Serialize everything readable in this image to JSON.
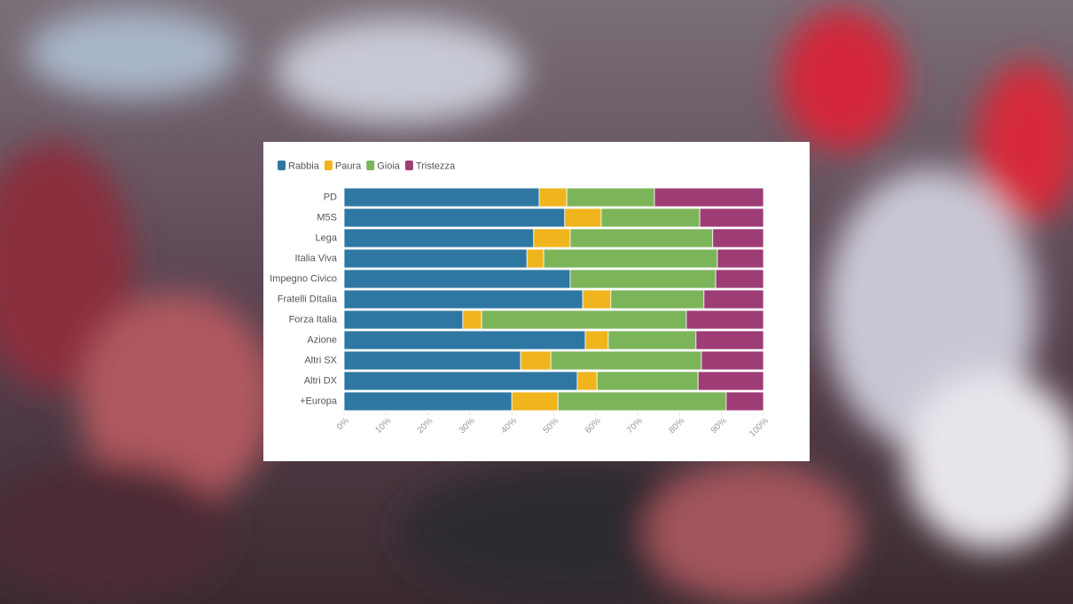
{
  "chart_data": {
    "type": "stacked-bar-horizontal",
    "categories": [
      "PD",
      "M5S",
      "Lega",
      "Italia Viva",
      "Impegno Civico",
      "Fratelli DItalia",
      "Forza Italia",
      "Azione",
      "Altri SX",
      "Altri DX",
      "+Europa"
    ],
    "series": [
      {
        "name": "Rabbia",
        "color": "#2e77a3",
        "values": [
          46.5,
          52.6,
          45.2,
          43.6,
          53.9,
          56.9,
          28.3,
          57.5,
          42.1,
          55.6,
          40.0
        ]
      },
      {
        "name": "Paura",
        "color": "#f0b41d",
        "values": [
          6.6,
          8.7,
          8.7,
          4.0,
          0,
          6.7,
          4.5,
          5.5,
          7.2,
          4.7,
          11.0
        ]
      },
      {
        "name": "Gioia",
        "color": "#7cb559",
        "values": [
          20.9,
          23.5,
          34.0,
          41.4,
          34.7,
          22.2,
          48.8,
          20.9,
          35.9,
          24.1,
          40.1
        ]
      },
      {
        "name": "Tristezza",
        "color": "#9e3c76",
        "values": [
          26.0,
          15.2,
          12.1,
          11.0,
          11.4,
          14.2,
          18.4,
          16.1,
          14.8,
          15.6,
          8.9
        ]
      }
    ],
    "xlim": [
      0,
      100
    ],
    "xticks": [
      {
        "value": 0,
        "label": "0%"
      },
      {
        "value": 10,
        "label": "10%"
      },
      {
        "value": 20,
        "label": "20%"
      },
      {
        "value": 30,
        "label": "30%"
      },
      {
        "value": 40,
        "label": "40%"
      },
      {
        "value": 50,
        "label": "50%"
      },
      {
        "value": 60,
        "label": "60%"
      },
      {
        "value": 70,
        "label": "70%"
      },
      {
        "value": 80,
        "label": "80%"
      },
      {
        "value": 90,
        "label": "90%"
      },
      {
        "value": 100,
        "label": "100%"
      }
    ],
    "legend": "top-left"
  }
}
